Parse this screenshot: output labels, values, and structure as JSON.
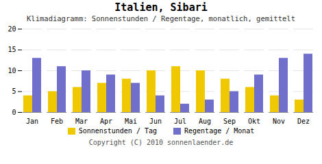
{
  "chart_data": {
    "type": "bar",
    "title": "Italien, Sibari",
    "subtitle": "Klimadiagramm: Sonnenstunden / Regentage, monatlich, gemittelt",
    "caption": "Copyright (C) 2010 sonnenlaender.de",
    "categories": [
      "Jan",
      "Feb",
      "Mar",
      "Apr",
      "Mai",
      "Jun",
      "Jul",
      "Aug",
      "Sep",
      "Okt",
      "Nov",
      "Dez"
    ],
    "series": [
      {
        "name": "Sonnenstunden / Tag",
        "color": "#F0C800",
        "values": [
          4,
          5,
          6,
          7,
          8,
          10,
          11,
          10,
          8,
          6,
          4,
          3
        ]
      },
      {
        "name": "Regentage / Monat",
        "color": "#7070CC",
        "values": [
          13,
          11,
          10,
          9,
          7,
          4,
          2,
          3,
          5,
          9,
          13,
          14
        ]
      }
    ],
    "ylim": [
      0,
      20
    ],
    "yticks": [
      0,
      5,
      10,
      15,
      20
    ],
    "grid": true,
    "legend": "bottom"
  }
}
